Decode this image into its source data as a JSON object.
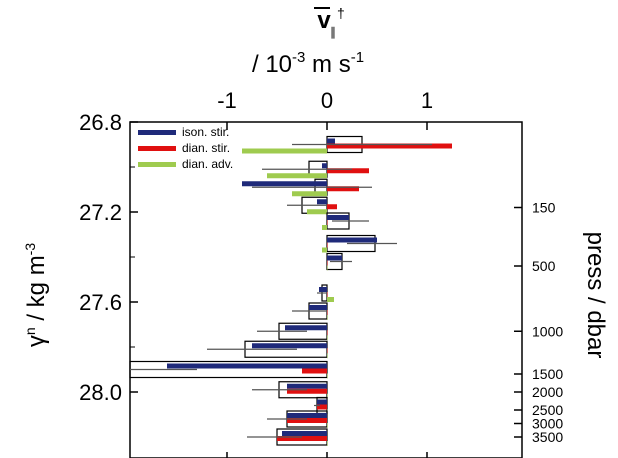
{
  "chart_data": {
    "type": "bar",
    "orientation": "horizontal",
    "top_axis": {
      "label_symbol": "v",
      "label_superscript": "†",
      "label_subscript": "∥",
      "label_units": "/ 10-3 m s-1",
      "units_prefix": "/ 10",
      "units_exp": "-3",
      "units_mid": " m s",
      "units_exp2": "-1",
      "ticks": [
        -1,
        0,
        1
      ],
      "tick_labels": [
        "-1",
        "0",
        "1"
      ],
      "xlim": [
        -1.9,
        1.9
      ]
    },
    "left_axis": {
      "label": "γn / kg m-3",
      "label_sym": "γ",
      "label_sup": "n",
      "label_mid": " / kg m",
      "label_exp": "-3",
      "ticks": [
        26.8,
        27.2,
        27.6,
        28.0
      ],
      "tick_labels": [
        "26.8",
        "27.2",
        "27.6",
        "28.0"
      ],
      "ylim": [
        26.8,
        28.17
      ],
      "inverted": true
    },
    "right_axis": {
      "label": "press / dbar",
      "tick_labels": [
        "150",
        "500",
        "1000",
        "1500",
        "2000",
        "2500",
        "3000",
        "3500"
      ],
      "tick_density": [
        27.18,
        27.44,
        27.73,
        27.92,
        28.0,
        28.08,
        28.14,
        28.2
      ]
    },
    "legend": {
      "position": "top-left",
      "entries": [
        {
          "name": "ison. stir.",
          "color": "#1f2a7a"
        },
        {
          "name": "dian. stir.",
          "color": "#e01010"
        },
        {
          "name": "dian. adv.",
          "color": "#9fcb4f"
        }
      ]
    },
    "colors": {
      "ison": "#1f2a7a",
      "dian_stir": "#e01010",
      "dian_adv": "#9fcb4f",
      "total_box": "#000000",
      "errorbar": "#555555"
    },
    "layers": [
      {
        "center": 26.9,
        "total": 0.35,
        "ison": 0.08,
        "dian": 1.25,
        "adv": -0.85,
        "err_lo": -0.35,
        "err_hi": 1.05
      },
      {
        "center": 27.01,
        "total": -0.18,
        "ison": -0.05,
        "dian": 0.42,
        "adv": -0.6,
        "err_lo": -0.65,
        "err_hi": 0.25
      },
      {
        "center": 27.09,
        "total": -0.12,
        "ison": -0.85,
        "dian": 0.32,
        "adv": -0.35,
        "err_lo": -0.75,
        "err_hi": 0.45
      },
      {
        "center": 27.17,
        "total": -0.25,
        "ison": -0.1,
        "dian": 0.1,
        "adv": -0.2,
        "err_lo": -0.4,
        "err_hi": 0.0
      },
      {
        "center": 27.24,
        "total": 0.22,
        "ison": 0.22,
        "dian": 0.0,
        "adv": -0.05,
        "err_lo": 0.05,
        "err_hi": 0.42
      },
      {
        "center": 27.34,
        "total": 0.48,
        "ison": 0.5,
        "dian": 0.0,
        "adv": -0.05,
        "err_lo": 0.2,
        "err_hi": 0.7
      },
      {
        "center": 27.42,
        "total": 0.15,
        "ison": 0.15,
        "dian": 0.0,
        "adv": 0.0,
        "err_lo": 0.03,
        "err_hi": 0.25
      },
      {
        "center": 27.56,
        "total": -0.05,
        "ison": -0.08,
        "dian": 0.0,
        "adv": 0.07,
        "err_lo": -0.1,
        "err_hi": 0.0
      },
      {
        "center": 27.64,
        "total": -0.18,
        "ison": -0.18,
        "dian": 0.0,
        "adv": 0.0,
        "err_lo": -0.35,
        "err_hi": 0.0
      },
      {
        "center": 27.73,
        "total": -0.48,
        "ison": -0.42,
        "dian": 0.0,
        "adv": 0.0,
        "err_lo": -0.7,
        "err_hi": -0.2
      },
      {
        "center": 27.81,
        "total": -0.82,
        "ison": -0.75,
        "dian": 0.0,
        "adv": 0.0,
        "err_lo": -1.2,
        "err_hi": -0.3
      },
      {
        "center": 27.9,
        "total": -2.1,
        "ison": -1.6,
        "dian": -0.25,
        "adv": 0.0,
        "err_lo": -2.9,
        "err_hi": -1.3
      },
      {
        "center": 27.99,
        "total": -0.48,
        "ison": -0.4,
        "dian": -0.4,
        "adv": 0.0,
        "err_lo": -0.75,
        "err_hi": -0.2
      },
      {
        "center": 28.06,
        "total": -0.1,
        "ison": -0.1,
        "dian": -0.1,
        "adv": 0.0,
        "err_lo": -0.13,
        "err_hi": -0.07
      },
      {
        "center": 28.12,
        "total": -0.4,
        "ison": -0.4,
        "dian": -0.4,
        "adv": 0.0,
        "err_lo": -0.6,
        "err_hi": -0.2
      },
      {
        "center": 28.2,
        "total": -0.5,
        "ison": -0.45,
        "dian": -0.5,
        "adv": 0.0,
        "err_lo": -0.8,
        "err_hi": -0.25
      }
    ]
  }
}
